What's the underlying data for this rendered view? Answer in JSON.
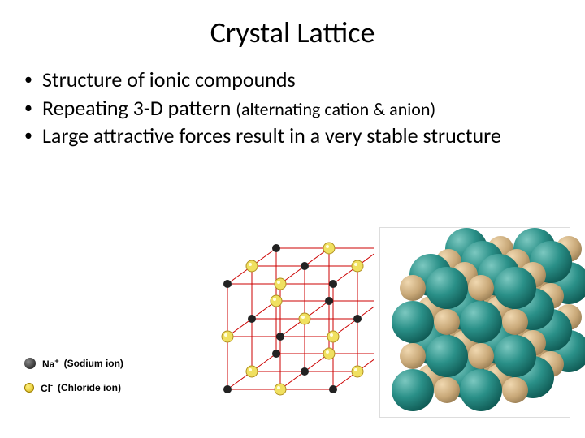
{
  "title": "Crystal Lattice",
  "bullets": [
    {
      "text_main": "Structure of ionic compounds",
      "text_sub": ""
    },
    {
      "text_main": "Repeating 3-D pattern ",
      "text_sub": "(alternating cation & anion)"
    },
    {
      "text_main": "Large attractive forces result in a very stable structure",
      "text_sub": ""
    }
  ],
  "legend": {
    "na": {
      "symbol": "Na",
      "charge": "+",
      "desc": "(Sodium ion)",
      "color": "#333333"
    },
    "cl": {
      "symbol": "Cl",
      "charge": "-",
      "desc": "(Chloride ion)",
      "color": "#e8d040"
    }
  },
  "wireframe": {
    "grid_color": "#cc0000",
    "na_color_dark": "#222222",
    "cl_color": "#f0e060",
    "cl_border": "#b09020",
    "positions_comment": "3x3x3 NaCl lattice, alternating Na (dark small) and Cl (yellow larger)"
  },
  "spacefill": {
    "teal_color": "#2a9088",
    "tan_color": "#c8a878",
    "lattice": "4x4x4 alternating close-packed spheres"
  },
  "colors": {
    "background": "#ffffff",
    "text": "#000000"
  },
  "typography": {
    "title_fontsize": 36,
    "bullet_fontsize": 26,
    "bullet_sub_fontsize": 22,
    "legend_fontsize": 12,
    "font_family": "Calibri"
  }
}
